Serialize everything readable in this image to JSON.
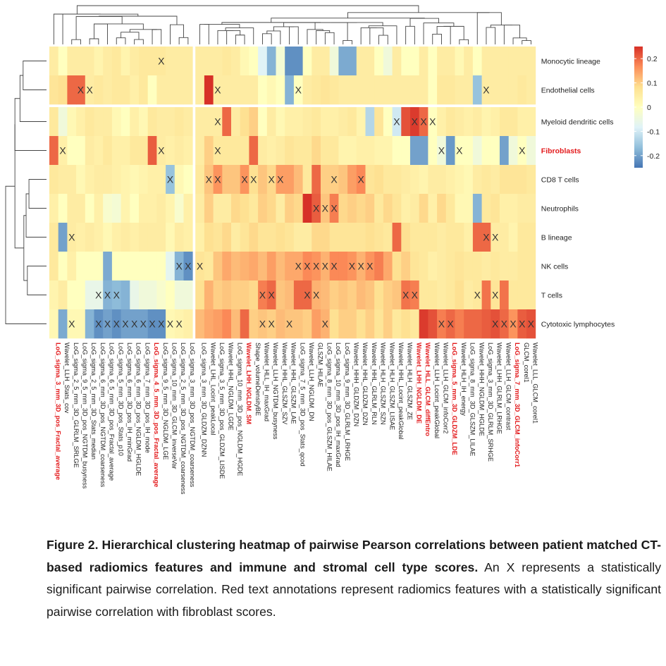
{
  "chart_data": {
    "type": "heatmap",
    "title": "",
    "rows": [
      "Monocytic lineage",
      "Endothelial cells",
      "Myeloid dendritic cells",
      "Fibroblasts",
      "CD8 T cells",
      "Neutrophils",
      "B lineage",
      "NK cells",
      "T cells",
      "Cytotoxic lymphocytes"
    ],
    "highlight_rows": [
      "Fibroblasts"
    ],
    "columns": [
      "LoG_sigma_3_mm_3D_pos_Fractal_average",
      "Wavelet_LLH_Stats_cov",
      "LoG_sigma_2_5_mm_3D_GLRLM_SRLGE",
      "LoG_sigma_9_5_mm_3D_pos_NGTDM_busyness",
      "LoG_sigma_2_5_mm_3D_Stats_median",
      "LoG_sigma_6_mm_3D_pos_NGTDM_coarseness",
      "LoG_sigma_6_5_mm_3D_pos_Fractal_average",
      "LoG_sigma_5_mm_3D_pos_Stats_p10",
      "LoG_sigma_6_mm_3D_pos_IH_minGrad",
      "LoG_sigma_6_mm_3D_pos_NGLDM_HGLDE",
      "LoG_sigma_7_mm_3D_pos_IH_mode",
      "LoG_sigma_4_5_mm_3D_pos_Fractal_average",
      "LoG_sigma_9_5_mm_3D_NGLDM_LGE",
      "LoG_sigma_10_mm_3D_GLCM_inverseVar",
      "LoG_sigma_2_5_mm_3D_pos_NGTDM_coarseness",
      "LoG_sigma_3_mm_3D_pos_NGTDM_coarseness",
      "LoG_sigma_3_mm_3D_GLDZM_DZNN",
      "Wavelet_LHL_Locint_peakLocal",
      "LoG_sigma_3_5_mm_3D_pos_GLDZM_LISDE",
      "Wavelet_HHL_NGLDM_LGDE",
      "LoG_sigma_10_mm_3D_pos_NGLDM_HGDE",
      "Wavelet_LHH_NGLDM_SM",
      "Shape_volumeDensityBE",
      "Wavelet_HLL_IH_maxGrad",
      "Wavelet_LLH_NGTDM_busyness",
      "Wavelet_HHL_GLSZM_SZV",
      "Wavelet_HHL_GLSZM_LAE",
      "LoG_sigma_7_5_mm_3D_pos_Stats_qcod",
      "Wavelet_LLH_NGLDM_DN",
      "GLSZM_HILAE",
      "LoG_sigma_8_mm_3D_pos_GLSZM_HILAE",
      "LoG_sigma_10_mm_3D_pos_IH_maxGrad",
      "LoG_sigma_9_mm_3D_GLRLM_LRHGE",
      "Wavelet_HHH_GLDZM_DZN",
      "Wavelet_HHL_GLDZM_DZN",
      "Wavelet_HHL_GLRLM_RLN",
      "Wavelet_HLH_GLSZM_SZN",
      "Wavelet_HLH_GLSZM_LISAE",
      "Wavelet_HHL_Locint_peakGlobal",
      "Wavelet_HLH_GLSZM_ZE",
      "Wavelet_LHH_NGLDM_DE",
      "Wavelet_HLL_GLCM_diffEntro",
      "Wavelet_LLH_Locint_peakGlobal",
      "Wavelet_LLH_GLCM_infoCorr2",
      "LoG_sigma_5_mm_3D_GLDZM_LDE",
      "Wavelet_HLH_IH_energy",
      "LoG_sigma_8_mm_3D_GLSZM_LILAE",
      "Wavelet_HHH_NGLDM_HGLDE",
      "LoG_sigma_3_mm_3D_GLRLM_SRHGE",
      "Wavelet_LHH_GLRLM_LRHGE",
      "Wavelet_LLH_GLCM_contrast",
      "LoG_sigma_7_mm_3D_GLCM_infoCorr1",
      "GLCM_corel1",
      "Wavelet_LLL_GLCM_corel1"
    ],
    "highlight_columns": [
      "LoG_sigma_3_mm_3D_pos_Fractal_average",
      "LoG_sigma_4_5_mm_3D_pos_Fractal_average",
      "Wavelet_LHH_NGLDM_SM",
      "Wavelet_LHH_NGLDM_DE",
      "Wavelet_HLL_GLCM_diffEntro",
      "LoG_sigma_5_mm_3D_GLDZM_LDE",
      "LoG_sigma_7_mm_3D_GLCM_infoCorr1"
    ],
    "row_split_after": [
      1
    ],
    "column_split_after": [
      15
    ],
    "values": [
      [
        0.05,
        0.0,
        0.05,
        0.05,
        0.05,
        0.03,
        0.05,
        0.06,
        0.03,
        0.05,
        0.06,
        0.06,
        0.06,
        0.05,
        0.05,
        0.05,
        0.05,
        0.05,
        0.05,
        0.06,
        0.05,
        0.02,
        0.0,
        -0.08,
        -0.18,
        -0.03,
        -0.22,
        -0.22,
        0.0,
        0.05,
        0.05,
        -0.04,
        -0.19,
        -0.19,
        0.05,
        0.05,
        0.0,
        -0.04,
        0.05,
        0.0,
        0.0,
        0.05,
        0.0,
        0.05,
        0.05,
        0.02,
        0.05,
        0.0,
        0.05,
        0.05,
        0.05,
        0.05,
        0.05,
        0.05
      ],
      [
        0.07,
        0.08,
        0.2,
        0.2,
        0.05,
        0.06,
        0.05,
        0.06,
        0.06,
        0.04,
        0.06,
        0.0,
        0.05,
        0.05,
        0.05,
        0.05,
        0.05,
        0.25,
        0.05,
        0.05,
        0.05,
        0.05,
        0.05,
        0.0,
        0.02,
        0.0,
        -0.18,
        0.0,
        0.05,
        0.06,
        0.07,
        0.06,
        0.05,
        0.05,
        0.05,
        0.05,
        0.05,
        0.05,
        0.05,
        0.05,
        0.05,
        0.05,
        0.0,
        0.06,
        0.06,
        0.05,
        0.05,
        -0.16,
        0.05,
        0.05,
        0.05,
        0.05,
        0.06,
        0.05
      ],
      [
        0.06,
        -0.04,
        0.02,
        0.04,
        0.06,
        0.05,
        0.05,
        0.02,
        0.0,
        0.04,
        0.02,
        0.06,
        0.05,
        0.05,
        0.06,
        0.05,
        0.05,
        0.05,
        0.05,
        0.2,
        0.05,
        0.08,
        0.1,
        0.0,
        0.05,
        0.02,
        0.04,
        0.04,
        0.05,
        0.06,
        0.04,
        0.04,
        0.05,
        0.06,
        0.03,
        -0.13,
        0.07,
        0.0,
        -0.1,
        0.22,
        0.24,
        0.2,
        0.0,
        0.04,
        0.06,
        0.05,
        0.04,
        0.05,
        0.03,
        0.04,
        0.06,
        0.06,
        0.04,
        0.04
      ],
      [
        0.2,
        0.04,
        0.0,
        0.0,
        0.05,
        0.04,
        0.06,
        0.04,
        0.04,
        0.06,
        0.06,
        0.21,
        0.05,
        0.04,
        0.05,
        0.04,
        0.05,
        0.1,
        0.06,
        0.06,
        0.06,
        0.06,
        0.2,
        0.05,
        0.04,
        0.05,
        0.07,
        0.06,
        0.06,
        0.09,
        0.06,
        0.06,
        0.03,
        0.03,
        0.04,
        0.04,
        0.03,
        0.03,
        0.0,
        0.0,
        -0.2,
        -0.2,
        0.0,
        -0.04,
        -0.21,
        0.0,
        0.0,
        -0.04,
        0.0,
        0.0,
        -0.2,
        -0.04,
        0.0,
        -0.04
      ],
      [
        0.06,
        0.05,
        0.05,
        0.02,
        0.04,
        0.05,
        0.05,
        0.04,
        0.03,
        0.02,
        0.03,
        0.04,
        0.04,
        -0.16,
        0.02,
        0.0,
        0.06,
        0.11,
        0.16,
        0.11,
        0.11,
        0.16,
        0.08,
        0.11,
        0.09,
        0.15,
        0.15,
        0.12,
        0.06,
        0.2,
        0.1,
        0.1,
        0.11,
        0.15,
        0.17,
        0.07,
        0.08,
        0.06,
        0.06,
        0.05,
        0.04,
        0.03,
        0.05,
        0.05,
        0.04,
        0.03,
        0.02,
        0.05,
        0.06,
        0.05,
        0.07,
        0.07,
        0.07,
        0.06
      ],
      [
        0.04,
        0.0,
        0.05,
        0.05,
        0.0,
        0.04,
        -0.02,
        -0.03,
        0.03,
        0.0,
        0.04,
        0.04,
        0.05,
        0.03,
        -0.02,
        0.04,
        0.05,
        0.1,
        0.05,
        0.05,
        0.09,
        0.08,
        0.06,
        0.1,
        0.09,
        0.05,
        0.1,
        0.09,
        0.25,
        0.21,
        0.11,
        0.18,
        0.09,
        0.1,
        0.09,
        0.1,
        0.06,
        0.09,
        0.07,
        0.04,
        0.05,
        0.09,
        0.04,
        0.09,
        0.06,
        0.02,
        0.02,
        -0.18,
        0.06,
        0.07,
        0.04,
        0.04,
        0.05,
        0.05
      ],
      [
        0.06,
        -0.2,
        0.05,
        0.04,
        0.05,
        0.04,
        0.02,
        0.04,
        0.05,
        0.04,
        0.05,
        0.05,
        0.05,
        0.02,
        0.05,
        0.04,
        0.04,
        0.08,
        0.07,
        0.09,
        0.05,
        0.07,
        0.09,
        0.07,
        0.07,
        0.08,
        0.07,
        0.05,
        0.05,
        0.09,
        0.09,
        0.07,
        0.07,
        0.07,
        0.07,
        0.08,
        0.07,
        0.06,
        0.2,
        0.08,
        0.06,
        0.06,
        0.06,
        0.05,
        0.06,
        0.06,
        0.04,
        0.2,
        0.2,
        0.05,
        0.05,
        0.03,
        0.06,
        0.06
      ],
      [
        0.06,
        0.0,
        0.04,
        0.0,
        0.0,
        0.0,
        -0.19,
        0.0,
        0.0,
        0.0,
        0.0,
        0.0,
        0.0,
        -0.07,
        -0.18,
        -0.22,
        0.07,
        0.06,
        0.11,
        0.14,
        0.12,
        0.13,
        0.14,
        0.12,
        0.15,
        0.12,
        0.14,
        0.14,
        0.17,
        0.16,
        0.13,
        0.17,
        0.17,
        0.16,
        0.13,
        0.16,
        0.18,
        0.14,
        0.08,
        0.1,
        0.07,
        0.06,
        0.04,
        0.05,
        0.06,
        0.07,
        0.06,
        0.06,
        0.05,
        0.06,
        0.05,
        0.05,
        0.06,
        0.06
      ],
      [
        0.03,
        0.05,
        0.0,
        0.0,
        -0.06,
        -0.06,
        -0.18,
        -0.17,
        -0.18,
        -0.06,
        -0.04,
        -0.04,
        -0.02,
        0.0,
        -0.04,
        -0.04,
        0.08,
        0.13,
        0.1,
        0.11,
        0.1,
        0.1,
        0.09,
        0.18,
        0.2,
        0.11,
        0.12,
        0.2,
        0.2,
        0.13,
        0.12,
        0.1,
        0.11,
        0.1,
        0.12,
        0.11,
        0.08,
        0.1,
        0.11,
        0.19,
        0.18,
        0.06,
        0.06,
        0.05,
        0.06,
        0.08,
        0.05,
        0.06,
        0.19,
        0.07,
        0.19,
        0.06,
        0.06,
        0.06
      ],
      [
        0.02,
        -0.19,
        0.02,
        0.02,
        -0.18,
        -0.22,
        -0.2,
        -0.22,
        -0.2,
        -0.2,
        -0.2,
        -0.22,
        -0.22,
        0.02,
        0.03,
        0.04,
        0.12,
        0.14,
        0.15,
        0.17,
        0.12,
        0.2,
        0.1,
        0.11,
        0.1,
        0.12,
        0.11,
        0.11,
        0.1,
        0.15,
        0.13,
        0.08,
        0.1,
        0.1,
        0.08,
        0.1,
        0.07,
        0.1,
        0.06,
        0.08,
        0.06,
        0.24,
        0.22,
        0.18,
        0.2,
        0.18,
        0.2,
        0.2,
        0.21,
        0.22,
        0.2,
        0.16,
        0.21,
        0.22
      ]
    ],
    "significant": [
      [
        12
      ],
      [
        3,
        4,
        18,
        27,
        48
      ],
      [
        18,
        38,
        40,
        41,
        42
      ],
      [
        1,
        12,
        18,
        43,
        45,
        52
      ],
      [
        13,
        17,
        18,
        21,
        22,
        24,
        25,
        31,
        34
      ],
      [
        29,
        30,
        31
      ],
      [
        2,
        48,
        49
      ],
      [
        14,
        15,
        16,
        27,
        28,
        29,
        30,
        31,
        33,
        34,
        35
      ],
      [
        5,
        6,
        7,
        23,
        24,
        28,
        29,
        39,
        40,
        47,
        49
      ],
      [
        2,
        5,
        6,
        7,
        8,
        9,
        10,
        11,
        12,
        13,
        14,
        23,
        24,
        26,
        30,
        43,
        44,
        49,
        50,
        51,
        52,
        53
      ]
    ],
    "color_scale": {
      "min": -0.25,
      "max": 0.25,
      "ticks": [
        0.2,
        0.1,
        0,
        -0.1,
        -0.2
      ],
      "tick_labels": [
        "0.2",
        "0.1",
        "0",
        "-0.1",
        "-0.2"
      ],
      "colors": [
        "#4575b4",
        "#91bfdb",
        "#e0f3f8",
        "#ffffbf",
        "#fee090",
        "#fc8d59",
        "#d73027"
      ]
    },
    "marker": "X",
    "highlight_color": "#e31a1c"
  },
  "caption": {
    "label": "Figure 2.",
    "title": "Hierarchical clustering heatmap of pairwise Pearson correlations between patient matched CT-based radiomics features and immune and stromal cell type scores.",
    "text": "An X represents a statistically significant pairwise correlation. Red text annotations represent radiomics features with a statistically significant pairwise correlation with fibroblast scores."
  }
}
